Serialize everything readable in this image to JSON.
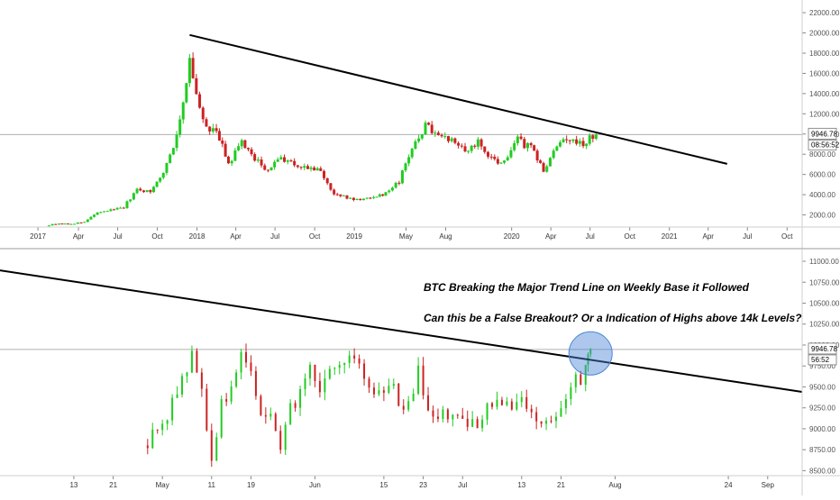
{
  "colors": {
    "up": "#22cc22",
    "down": "#cc2222",
    "trendline": "#000000",
    "breakout_circle": "#4a86d4",
    "price_line": "#b0b0b0"
  },
  "annotations": [
    "BTC Breaking the  Major Trend Line on Weekly Base it Followed",
    "Can this be a False Breakout? Or a Indication of Highs above 14k Levels?"
  ],
  "price_tags": {
    "top": {
      "price": "9946.78",
      "countdown": "08:56:52"
    },
    "bottom": {
      "price": "9946.78",
      "countdown": "56:52"
    }
  },
  "chart_data": [
    {
      "type": "candlestick",
      "timeframe": "weekly",
      "x_ticks": [
        "2017",
        "Apr",
        "Jul",
        "Oct",
        "2018",
        "Apr",
        "Jul",
        "Oct",
        "2019",
        "May",
        "Aug",
        "2020",
        "Apr",
        "Jul",
        "Oct",
        "2021",
        "Apr",
        "Jul",
        "Oct"
      ],
      "y_ticks": [
        "2000.00",
        "4000.00",
        "6000.00",
        "8000.00",
        "10000.00",
        "12000.00",
        "14000.00",
        "16000.00",
        "18000.00",
        "20000.00",
        "22000.00"
      ],
      "ylim": [
        800,
        22900
      ],
      "last_price": 9946.78,
      "trendline": {
        "from": {
          "date": "2017-12",
          "price": 19800
        },
        "to": {
          "date": "2021-05",
          "price": 7050
        }
      },
      "close_series": [
        {
          "date": "2017-01",
          "close": 950
        },
        {
          "date": "2017-02",
          "close": 1150
        },
        {
          "date": "2017-03",
          "close": 1100
        },
        {
          "date": "2017-04",
          "close": 1300
        },
        {
          "date": "2017-05",
          "close": 2200
        },
        {
          "date": "2017-06",
          "close": 2500
        },
        {
          "date": "2017-07",
          "close": 2800
        },
        {
          "date": "2017-08",
          "close": 4500
        },
        {
          "date": "2017-09",
          "close": 4300
        },
        {
          "date": "2017-10",
          "close": 6200
        },
        {
          "date": "2017-11",
          "close": 9900
        },
        {
          "date": "2017-12",
          "close": 17000
        },
        {
          "date": "2018-01",
          "close": 11000
        },
        {
          "date": "2018-02",
          "close": 10300
        },
        {
          "date": "2018-03",
          "close": 7000
        },
        {
          "date": "2018-04",
          "close": 9200
        },
        {
          "date": "2018-05",
          "close": 7500
        },
        {
          "date": "2018-06",
          "close": 6400
        },
        {
          "date": "2018-07",
          "close": 7700
        },
        {
          "date": "2018-08",
          "close": 7000
        },
        {
          "date": "2018-09",
          "close": 6600
        },
        {
          "date": "2018-10",
          "close": 6300
        },
        {
          "date": "2018-11",
          "close": 4000
        },
        {
          "date": "2018-12",
          "close": 3700
        },
        {
          "date": "2019-01",
          "close": 3450
        },
        {
          "date": "2019-02",
          "close": 3850
        },
        {
          "date": "2019-03",
          "close": 4100
        },
        {
          "date": "2019-04",
          "close": 5300
        },
        {
          "date": "2019-05",
          "close": 8600
        },
        {
          "date": "2019-06",
          "close": 10800
        },
        {
          "date": "2019-07",
          "close": 10100
        },
        {
          "date": "2019-08",
          "close": 9600
        },
        {
          "date": "2019-09",
          "close": 8300
        },
        {
          "date": "2019-10",
          "close": 9200
        },
        {
          "date": "2019-11",
          "close": 7500
        },
        {
          "date": "2019-12",
          "close": 7200
        },
        {
          "date": "2020-01",
          "close": 9350
        },
        {
          "date": "2020-02",
          "close": 8600
        },
        {
          "date": "2020-03",
          "close": 6400
        },
        {
          "date": "2020-04",
          "close": 8700
        },
        {
          "date": "2020-05",
          "close": 9500
        },
        {
          "date": "2020-06",
          "close": 9150
        },
        {
          "date": "2020-07",
          "close": 9946.78
        }
      ]
    },
    {
      "type": "candlestick",
      "timeframe": "daily",
      "x_ticks": [
        "13",
        "21",
        "May",
        "11",
        "19",
        "Jun",
        "15",
        "23",
        "Jul",
        "13",
        "21",
        "Aug",
        "24",
        "Sep"
      ],
      "y_ticks": [
        "8500.00",
        "8750.00",
        "9000.00",
        "9250.00",
        "9500.00",
        "9750.00",
        "10000.00",
        "10250.00",
        "10500.00",
        "10750.00",
        "11000.00"
      ],
      "ylim": [
        8440,
        11140
      ],
      "last_price": 9946.78,
      "trendline": {
        "from": {
          "date": "2020-03-28",
          "price": 10900
        },
        "to": {
          "date": "2020-09-08",
          "price": 9440
        }
      },
      "breakout_marker": {
        "date": "2020-07-27",
        "price": 9900,
        "shape": "circle"
      },
      "close_series": [
        {
          "date": "2020-04-27",
          "close": 8800
        },
        {
          "date": "2020-04-29",
          "close": 8950
        },
        {
          "date": "2020-05-01",
          "close": 9050
        },
        {
          "date": "2020-05-03",
          "close": 9300
        },
        {
          "date": "2020-05-05",
          "close": 9550
        },
        {
          "date": "2020-05-07",
          "close": 9950
        },
        {
          "date": "2020-05-09",
          "close": 9400
        },
        {
          "date": "2020-05-11",
          "close": 8600
        },
        {
          "date": "2020-05-13",
          "close": 9300
        },
        {
          "date": "2020-05-15",
          "close": 9500
        },
        {
          "date": "2020-05-17",
          "close": 9800
        },
        {
          "date": "2020-05-19",
          "close": 9600
        },
        {
          "date": "2020-05-21",
          "close": 9100
        },
        {
          "date": "2020-05-23",
          "close": 9200
        },
        {
          "date": "2020-05-25",
          "close": 8700
        },
        {
          "date": "2020-05-27",
          "close": 9200
        },
        {
          "date": "2020-05-29",
          "close": 9450
        },
        {
          "date": "2020-05-31",
          "close": 9650
        },
        {
          "date": "2020-06-02",
          "close": 9500
        },
        {
          "date": "2020-06-04",
          "close": 9700
        },
        {
          "date": "2020-06-06",
          "close": 9650
        },
        {
          "date": "2020-06-08",
          "close": 9780
        },
        {
          "date": "2020-06-10",
          "close": 9800
        },
        {
          "date": "2020-06-12",
          "close": 9450
        },
        {
          "date": "2020-06-14",
          "close": 9350
        },
        {
          "date": "2020-06-16",
          "close": 9500
        },
        {
          "date": "2020-06-18",
          "close": 9350
        },
        {
          "date": "2020-06-20",
          "close": 9300
        },
        {
          "date": "2020-06-22",
          "close": 9650
        },
        {
          "date": "2020-06-24",
          "close": 9300
        },
        {
          "date": "2020-06-26",
          "close": 9150
        },
        {
          "date": "2020-06-28",
          "close": 9100
        },
        {
          "date": "2020-06-30",
          "close": 9120
        },
        {
          "date": "2020-07-02",
          "close": 9080
        },
        {
          "date": "2020-07-04",
          "close": 9100
        },
        {
          "date": "2020-07-06",
          "close": 9250
        },
        {
          "date": "2020-07-08",
          "close": 9400
        },
        {
          "date": "2020-07-10",
          "close": 9250
        },
        {
          "date": "2020-07-12",
          "close": 9300
        },
        {
          "date": "2020-07-14",
          "close": 9250
        },
        {
          "date": "2020-07-16",
          "close": 9150
        },
        {
          "date": "2020-07-18",
          "close": 9170
        },
        {
          "date": "2020-07-20",
          "close": 9180
        },
        {
          "date": "2020-07-22",
          "close": 9400
        },
        {
          "date": "2020-07-24",
          "close": 9550
        },
        {
          "date": "2020-07-26",
          "close": 9700
        },
        {
          "date": "2020-07-27",
          "close": 9946.78
        }
      ]
    }
  ]
}
